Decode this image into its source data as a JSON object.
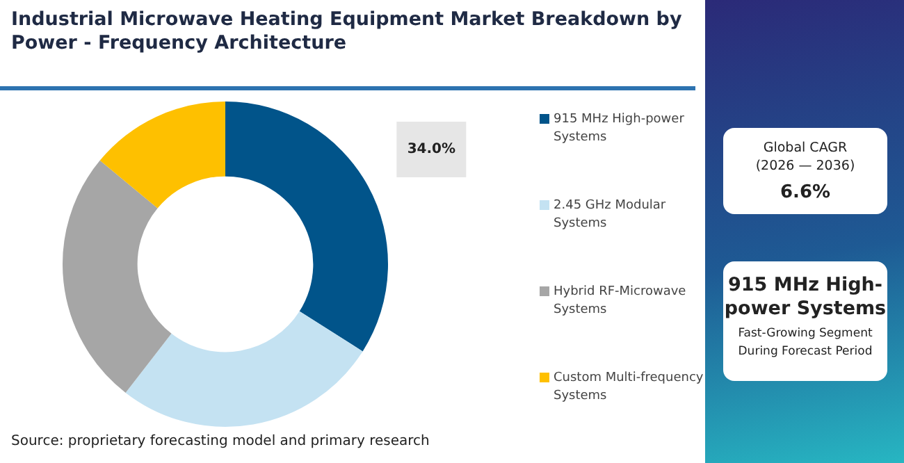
{
  "chart_data": {
    "type": "donut",
    "title": "Industrial Microwave Heating Equipment Market Breakdown by Power - Frequency Architecture",
    "categories": [
      "915 MHz High-power Systems",
      "2.45 GHz Modular Systems",
      "Hybrid RF-Microwave Systems",
      "Custom Multi-frequency Systems"
    ],
    "values": [
      34.0,
      26.5,
      25.5,
      14.0
    ],
    "colors": [
      "#01548a",
      "#c4e2f2",
      "#a6a6a6",
      "#fec000"
    ],
    "value_labels": [
      "34.0%",
      null,
      null,
      null
    ],
    "legend": "right",
    "annotations": [
      "Global CAGR (2026 — 2036)",
      "6.6%",
      "915 MHz High-power Systems",
      "Fast-Growing Segment During Forecast Period",
      "Source: proprietary forecasting model and primary research"
    ]
  }
}
